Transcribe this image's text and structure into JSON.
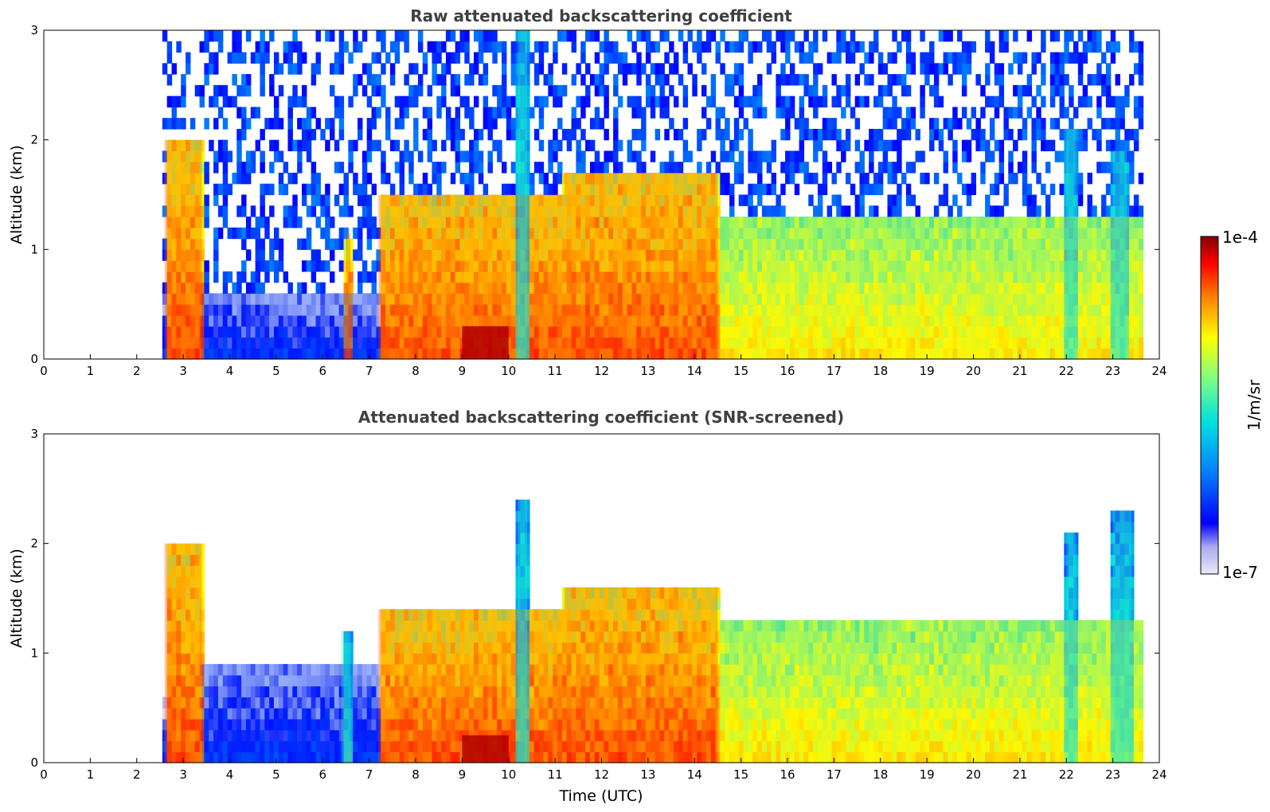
{
  "chart_data": [
    {
      "type": "heatmap",
      "title": "Raw attenuated backscattering coefficient",
      "xlabel": "",
      "ylabel": "Altitude (km)",
      "xlim": [
        0,
        24
      ],
      "ylim": [
        0,
        3
      ],
      "x_ticks": [
        0,
        1,
        2,
        3,
        4,
        5,
        6,
        7,
        8,
        9,
        10,
        11,
        12,
        13,
        14,
        15,
        16,
        17,
        18,
        19,
        20,
        21,
        22,
        23,
        24
      ],
      "y_ticks": [
        0,
        1,
        2,
        3
      ],
      "data_time_range": [
        2.55,
        23.65
      ],
      "screening": "none",
      "features": [
        {
          "start": 2.6,
          "end": 3.4,
          "top": 2.0,
          "level": "high"
        },
        {
          "start": 3.4,
          "end": 7.2,
          "top": 0.6,
          "level": "low"
        },
        {
          "start": 6.5,
          "end": 6.6,
          "top": 1.15,
          "level": "high"
        },
        {
          "start": 7.2,
          "end": 11.2,
          "top": 1.5,
          "level": "high"
        },
        {
          "start": 9.0,
          "end": 10.0,
          "top": 0.3,
          "level": "very-high"
        },
        {
          "start": 10.2,
          "end": 10.4,
          "top": 3.0,
          "level": "medium"
        },
        {
          "start": 11.2,
          "end": 14.5,
          "top": 1.7,
          "level": "high"
        },
        {
          "start": 14.5,
          "end": 23.65,
          "top": 1.3,
          "level": "medium-high"
        },
        {
          "start": 22.0,
          "end": 22.2,
          "top": 2.1,
          "level": "medium"
        },
        {
          "start": 23.0,
          "end": 23.3,
          "top": 1.9,
          "level": "medium"
        }
      ]
    },
    {
      "type": "heatmap",
      "title": "Attenuated backscattering coefficient (SNR-screened)",
      "xlabel": "Time (UTC)",
      "ylabel": "Altitude (km)",
      "xlim": [
        0,
        24
      ],
      "ylim": [
        0,
        3
      ],
      "x_ticks": [
        0,
        1,
        2,
        3,
        4,
        5,
        6,
        7,
        8,
        9,
        10,
        11,
        12,
        13,
        14,
        15,
        16,
        17,
        18,
        19,
        20,
        21,
        22,
        23,
        24
      ],
      "y_ticks": [
        0,
        1,
        2,
        3
      ],
      "data_time_range": [
        2.55,
        23.65
      ],
      "screening": "SNR",
      "features": [
        {
          "start": 2.6,
          "end": 3.4,
          "top": 2.0,
          "level": "high"
        },
        {
          "start": 3.4,
          "end": 7.2,
          "top": 0.9,
          "level": "low"
        },
        {
          "start": 6.4,
          "end": 6.6,
          "top": 1.2,
          "level": "medium"
        },
        {
          "start": 7.2,
          "end": 11.2,
          "top": 1.4,
          "level": "high"
        },
        {
          "start": 9.0,
          "end": 10.0,
          "top": 0.25,
          "level": "very-high"
        },
        {
          "start": 10.2,
          "end": 10.4,
          "top": 2.4,
          "level": "medium"
        },
        {
          "start": 11.2,
          "end": 14.5,
          "top": 1.6,
          "level": "high"
        },
        {
          "start": 14.5,
          "end": 23.65,
          "top": 1.3,
          "level": "medium-high"
        },
        {
          "start": 22.0,
          "end": 22.2,
          "top": 2.1,
          "level": "medium"
        },
        {
          "start": 23.0,
          "end": 23.4,
          "top": 2.3,
          "level": "medium"
        }
      ]
    }
  ],
  "colorbar": {
    "label": "1/m/sr",
    "max_label": "1e-4",
    "min_label": "1e-7",
    "scale": "log",
    "colormap": "jet",
    "range": [
      1e-07,
      0.0001
    ]
  }
}
